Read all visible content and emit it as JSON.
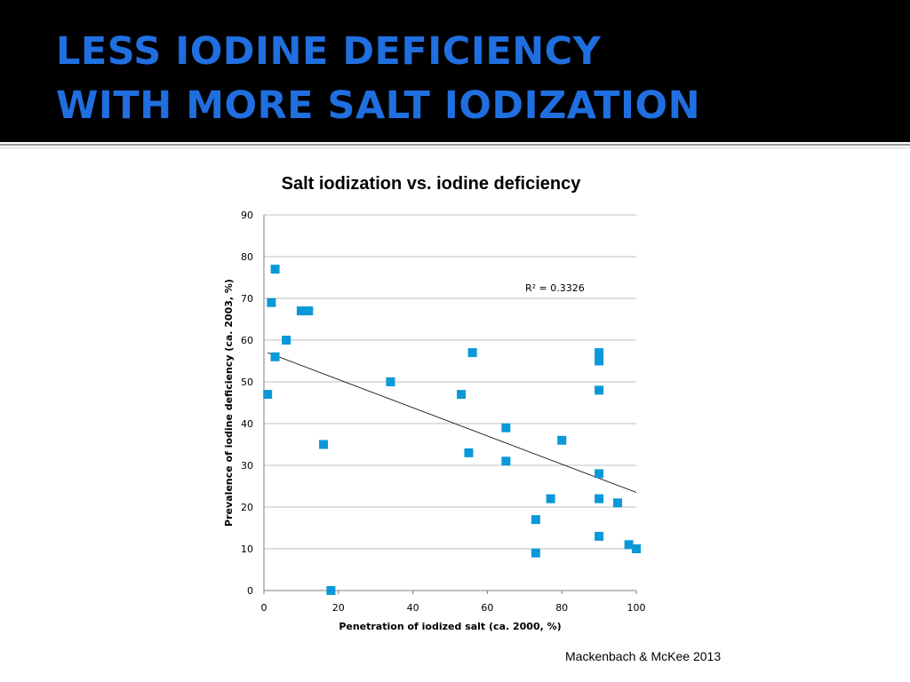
{
  "slide": {
    "title_line1": "LESS IODINE DEFICIENCY",
    "title_line2": "WITH MORE SALT IODIZATION",
    "citation": "Mackenbach & McKee 2013",
    "colors": {
      "header_bg": "#000000",
      "title_color": "#1f6fe0",
      "marker_color": "#0a98d8"
    }
  },
  "chart_data": {
    "type": "scatter",
    "title": "Salt iodization vs. iodine deficiency",
    "xlabel": "Penetration of iodized salt (ca. 2000, %)",
    "ylabel": "Prevalence of iodine deficiency (ca. 2003, %)",
    "xlim": [
      0,
      100
    ],
    "ylim": [
      0,
      90
    ],
    "x_ticks": [
      0,
      20,
      40,
      60,
      80,
      100
    ],
    "y_ticks": [
      0,
      10,
      20,
      30,
      40,
      50,
      60,
      70,
      80,
      90
    ],
    "grid": "horizontal",
    "marker": "square",
    "points": [
      {
        "x": 1,
        "y": 47
      },
      {
        "x": 2,
        "y": 69
      },
      {
        "x": 3,
        "y": 77
      },
      {
        "x": 3,
        "y": 56
      },
      {
        "x": 6,
        "y": 60
      },
      {
        "x": 10,
        "y": 67
      },
      {
        "x": 12,
        "y": 67
      },
      {
        "x": 16,
        "y": 35
      },
      {
        "x": 18,
        "y": 0
      },
      {
        "x": 34,
        "y": 50
      },
      {
        "x": 53,
        "y": 47
      },
      {
        "x": 55,
        "y": 33
      },
      {
        "x": 56,
        "y": 57
      },
      {
        "x": 65,
        "y": 39
      },
      {
        "x": 65,
        "y": 31
      },
      {
        "x": 73,
        "y": 17
      },
      {
        "x": 73,
        "y": 9
      },
      {
        "x": 77,
        "y": 22
      },
      {
        "x": 80,
        "y": 36
      },
      {
        "x": 90,
        "y": 57
      },
      {
        "x": 90,
        "y": 55
      },
      {
        "x": 90,
        "y": 48
      },
      {
        "x": 90,
        "y": 28
      },
      {
        "x": 90,
        "y": 22
      },
      {
        "x": 90,
        "y": 13
      },
      {
        "x": 95,
        "y": 21
      },
      {
        "x": 98,
        "y": 11
      },
      {
        "x": 100,
        "y": 10
      }
    ],
    "trendline": {
      "start": {
        "x": 1,
        "y": 57
      },
      "end": {
        "x": 100,
        "y": 23.5
      },
      "label": "R² = 0.3326"
    }
  }
}
